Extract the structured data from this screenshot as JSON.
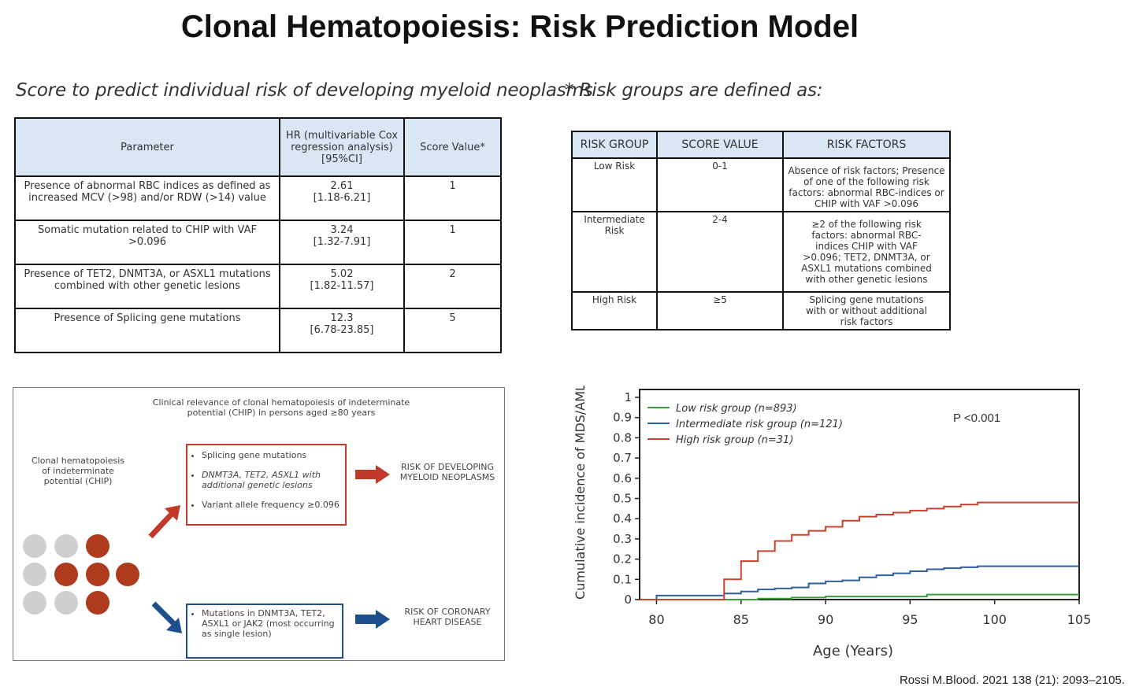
{
  "title": "Clonal Hematopoiesis: Risk Prediction Model",
  "left_subtitle": "Score to predict individual risk of developing myeloid neoplasms",
  "right_subtitle": "* Risk groups are defined as:",
  "param_table": {
    "headers": [
      "Parameter",
      "HR (multivariable Cox regression analysis) [95%CI]",
      "Score Value*"
    ],
    "rows": [
      {
        "parameter": "Presence of abnormal RBC indices as defined as increased MCV (>98) and/or RDW (>14) value",
        "hr": "2.61",
        "ci": "[1.18-6.21]",
        "score": "1"
      },
      {
        "parameter": "Somatic mutation related to CHIP with VAF >0.096",
        "hr": "3.24",
        "ci": "[1.32-7.91]",
        "score": "1"
      },
      {
        "parameter": "Presence of TET2, DNMT3A, or ASXL1 mutations combined with other genetic lesions",
        "hr": "5.02",
        "ci": "[1.82-11.57]",
        "score": "2"
      },
      {
        "parameter": "Presence of Splicing gene mutations",
        "hr": "12.3",
        "ci": "[6.78-23.85]",
        "score": "5"
      }
    ]
  },
  "risk_table": {
    "headers": [
      "RISK GROUP",
      "SCORE VALUE",
      "RISK FACTORS"
    ],
    "rows": [
      {
        "group": "Low Risk",
        "score": "0-1",
        "factors": "Absence of risk factors; Presence of one of the following risk factors: abnormal RBC-indices or CHIP with VAF >0.096"
      },
      {
        "group": "Intermediate Risk",
        "score": "2-4",
        "factors": "≥2 of the following risk factors: abnormal RBC-indices CHIP with VAF >0.096; TET2, DNMT3A, or ASXL1 mutations combined with other genetic lesions"
      },
      {
        "group": "High Risk",
        "score": "≥5",
        "factors": "Splicing gene mutations with or without additional risk factors"
      }
    ]
  },
  "diagram": {
    "caption": "Clinical relevance of clonal hematopoiesis of indeterminate potential (CHIP) in persons aged ≥80 years",
    "left_label": "Clonal hematopoiesis of indeterminate potential (CHIP)",
    "red_box_items": [
      "Splicing gene mutations",
      "DNMT3A, TET2, ASXL1 with additional genetic lesions",
      "Variant allele frequency ≥0.096"
    ],
    "red_outcome": "RISK OF DEVELOPING MYELOID NEOPLASMS",
    "blue_box_items": [
      "Mutations in DNMT3A, TET2, ASXL1 or JAK2 (most occurring as single lesion)"
    ],
    "blue_outcome": "RISK OF CORONARY HEART DISEASE",
    "colors": {
      "red": "#c0392b",
      "blue": "#1f4e8c"
    }
  },
  "chart_data": {
    "type": "line",
    "xlabel": "Age (Years)",
    "ylabel": "Cumulative incidence of MDS/AML",
    "xlim": [
      79,
      105
    ],
    "ylim": [
      0,
      1
    ],
    "xticks": [
      80,
      85,
      90,
      95,
      100,
      105
    ],
    "yticks": [
      0,
      0.1,
      0.2,
      0.3,
      0.4,
      0.5,
      0.6,
      0.7,
      0.8,
      0.9,
      1
    ],
    "annotation": "P <0.001",
    "legend_position": "top-left",
    "series": [
      {
        "name": "Low risk group (n=893)",
        "color": "#3a9e3a",
        "x": [
          79,
          85,
          86,
          88,
          90,
          96,
          105
        ],
        "y": [
          0,
          0,
          0.005,
          0.01,
          0.015,
          0.025,
          0.025
        ]
      },
      {
        "name": "Intermediate risk group (n=121)",
        "color": "#2e5f9e",
        "x": [
          79,
          80,
          84,
          85,
          86,
          87,
          88,
          89,
          90,
          91,
          92,
          93,
          94,
          95,
          96,
          97,
          98,
          99,
          105
        ],
        "y": [
          0,
          0.02,
          0.03,
          0.04,
          0.05,
          0.055,
          0.06,
          0.08,
          0.09,
          0.095,
          0.11,
          0.12,
          0.13,
          0.14,
          0.15,
          0.155,
          0.16,
          0.165,
          0.165
        ]
      },
      {
        "name": "High risk group (n=31)",
        "color": "#c9432c",
        "x": [
          79,
          84,
          85,
          86,
          87,
          88,
          89,
          90,
          91,
          92,
          93,
          94,
          95,
          96,
          97,
          98,
          99,
          105
        ],
        "y": [
          0,
          0.1,
          0.19,
          0.24,
          0.29,
          0.32,
          0.34,
          0.36,
          0.39,
          0.41,
          0.42,
          0.43,
          0.44,
          0.45,
          0.46,
          0.47,
          0.48,
          0.48
        ]
      }
    ]
  },
  "citation": "Rossi M.Blood. 2021 138 (21): 2093–2105."
}
